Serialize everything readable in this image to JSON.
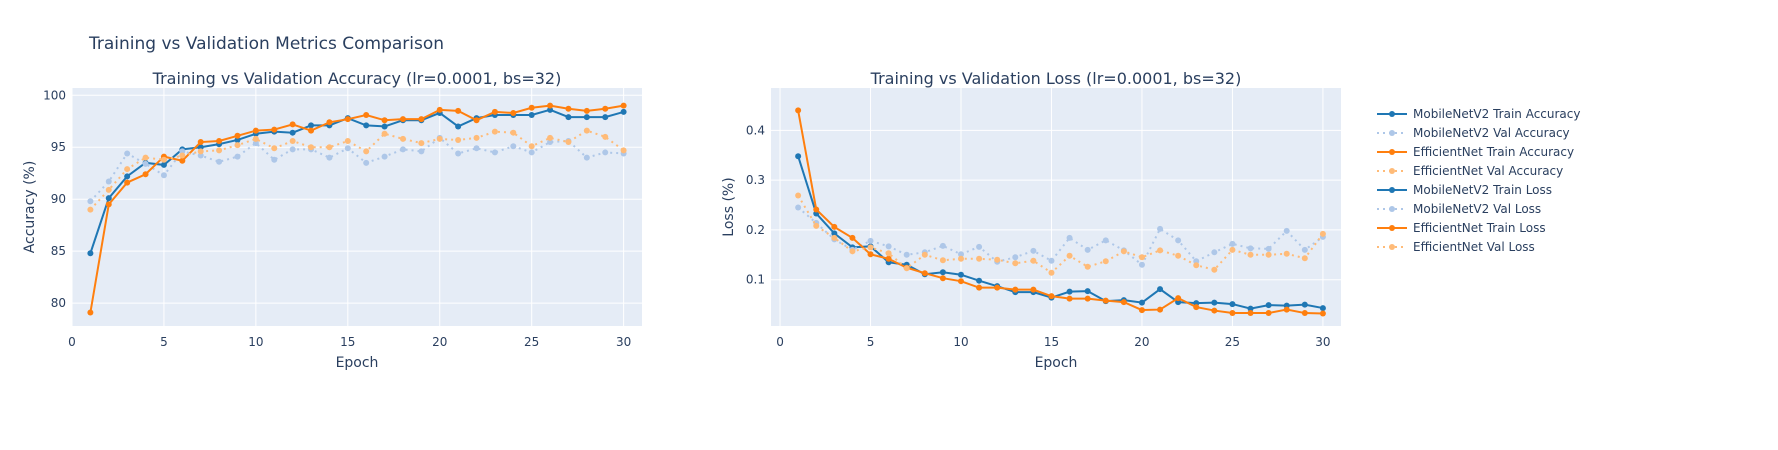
{
  "figure_title": "Training vs Validation Metrics Comparison",
  "chart_data": [
    {
      "type": "line",
      "title": "Training vs Validation Accuracy (lr=0.0001, bs=32)",
      "xlabel": "Epoch",
      "ylabel": "Accuracy (%)",
      "xlim": [
        0,
        31
      ],
      "ylim": [
        77.8,
        100.7
      ],
      "x_ticks": [
        0,
        5,
        10,
        15,
        20,
        25,
        30
      ],
      "y_ticks": [
        80,
        85,
        90,
        95,
        100
      ],
      "grid": true,
      "x": [
        1,
        2,
        3,
        4,
        5,
        6,
        7,
        8,
        9,
        10,
        11,
        12,
        13,
        14,
        15,
        16,
        17,
        18,
        19,
        20,
        21,
        22,
        23,
        24,
        25,
        26,
        27,
        28,
        29,
        30
      ],
      "series": [
        {
          "name": "MobileNetV2 Train Accuracy",
          "color": "#1f77b4",
          "style": "solid",
          "values": [
            84.8,
            90.1,
            92.2,
            93.5,
            93.3,
            94.8,
            95.0,
            95.3,
            95.7,
            96.3,
            96.5,
            96.4,
            97.1,
            97.1,
            97.8,
            97.1,
            97.0,
            97.6,
            97.6,
            98.3,
            97.0,
            97.8,
            98.1,
            98.1,
            98.1,
            98.6,
            97.9,
            97.9,
            97.9,
            98.4
          ]
        },
        {
          "name": "MobileNetV2 Val Accuracy",
          "color": "#aec7e8",
          "style": "dot",
          "values": [
            89.8,
            91.7,
            94.4,
            93.4,
            92.3,
            94.6,
            94.2,
            93.6,
            94.1,
            95.4,
            93.8,
            94.8,
            94.8,
            94.0,
            94.9,
            93.5,
            94.1,
            94.8,
            94.6,
            95.9,
            94.4,
            94.9,
            94.5,
            95.1,
            94.5,
            95.5,
            95.6,
            94.0,
            94.5,
            94.4
          ]
        },
        {
          "name": "EfficientNet Train Accuracy",
          "color": "#ff7f0e",
          "style": "solid",
          "values": [
            79.1,
            89.5,
            91.6,
            92.4,
            94.1,
            93.7,
            95.5,
            95.6,
            96.1,
            96.6,
            96.7,
            97.2,
            96.6,
            97.4,
            97.7,
            98.1,
            97.6,
            97.7,
            97.7,
            98.6,
            98.5,
            97.6,
            98.4,
            98.3,
            98.8,
            99.0,
            98.7,
            98.5,
            98.7,
            99.0
          ]
        },
        {
          "name": "EfficientNet Val Accuracy",
          "color": "#ffbb78",
          "style": "dot",
          "values": [
            89.0,
            90.9,
            92.9,
            94.0,
            93.8,
            94.2,
            94.6,
            94.7,
            95.2,
            95.8,
            94.9,
            95.6,
            95.0,
            95.0,
            95.6,
            94.6,
            96.3,
            95.8,
            95.4,
            95.8,
            95.7,
            95.9,
            96.5,
            96.4,
            95.1,
            95.9,
            95.5,
            96.6,
            96.0,
            94.7
          ]
        }
      ]
    },
    {
      "type": "line",
      "title": "Training vs Validation Loss (lr=0.0001, bs=32)",
      "xlabel": "Epoch",
      "ylabel": "Loss (%)",
      "xlim": [
        -0.5,
        31
      ],
      "ylim": [
        0.007,
        0.485
      ],
      "x_ticks": [
        0,
        5,
        10,
        15,
        20,
        25,
        30
      ],
      "y_ticks": [
        0.1,
        0.2,
        0.3,
        0.4
      ],
      "grid": true,
      "x": [
        1,
        2,
        3,
        4,
        5,
        6,
        7,
        8,
        9,
        10,
        11,
        12,
        13,
        14,
        15,
        16,
        17,
        18,
        19,
        20,
        21,
        22,
        23,
        24,
        25,
        26,
        27,
        28,
        29,
        30
      ],
      "series": [
        {
          "name": "MobileNetV2 Train Loss",
          "color": "#1f77b4",
          "style": "solid",
          "values": [
            0.348,
            0.233,
            0.193,
            0.165,
            0.167,
            0.135,
            0.13,
            0.111,
            0.115,
            0.11,
            0.098,
            0.087,
            0.075,
            0.075,
            0.064,
            0.076,
            0.077,
            0.057,
            0.059,
            0.054,
            0.081,
            0.055,
            0.053,
            0.054,
            0.051,
            0.042,
            0.049,
            0.048,
            0.05,
            0.043
          ]
        },
        {
          "name": "MobileNetV2 Val Loss",
          "color": "#aec7e8",
          "style": "dot",
          "values": [
            0.245,
            0.214,
            0.181,
            0.16,
            0.178,
            0.167,
            0.15,
            0.155,
            0.168,
            0.151,
            0.166,
            0.136,
            0.145,
            0.158,
            0.138,
            0.184,
            0.16,
            0.179,
            0.159,
            0.13,
            0.202,
            0.179,
            0.137,
            0.155,
            0.172,
            0.163,
            0.162,
            0.198,
            0.16,
            0.186
          ]
        },
        {
          "name": "EfficientNet Train Loss",
          "color": "#ff7f0e",
          "style": "solid",
          "values": [
            0.44,
            0.241,
            0.206,
            0.184,
            0.151,
            0.142,
            0.124,
            0.113,
            0.103,
            0.097,
            0.084,
            0.084,
            0.08,
            0.08,
            0.067,
            0.062,
            0.062,
            0.058,
            0.055,
            0.039,
            0.04,
            0.063,
            0.045,
            0.038,
            0.033,
            0.033,
            0.033,
            0.04,
            0.033,
            0.032
          ]
        },
        {
          "name": "EfficientNet Val Loss",
          "color": "#ffbb78",
          "style": "dot",
          "values": [
            0.269,
            0.208,
            0.184,
            0.157,
            0.165,
            0.153,
            0.123,
            0.15,
            0.139,
            0.142,
            0.142,
            0.14,
            0.133,
            0.138,
            0.114,
            0.148,
            0.126,
            0.137,
            0.157,
            0.145,
            0.159,
            0.148,
            0.129,
            0.12,
            0.16,
            0.15,
            0.15,
            0.152,
            0.143,
            0.192
          ]
        }
      ]
    }
  ]
}
